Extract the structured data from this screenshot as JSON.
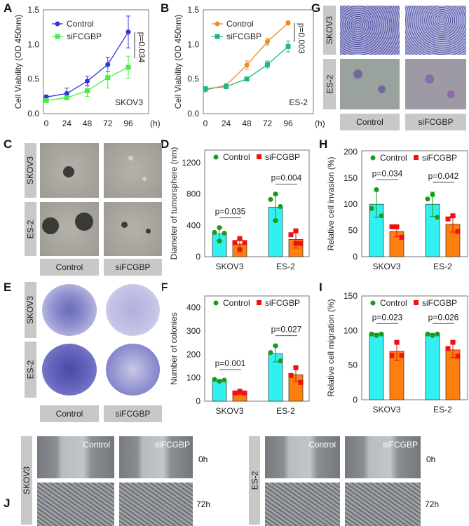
{
  "panels": {
    "A": "A",
    "B": "B",
    "C": "C",
    "D": "D",
    "E": "E",
    "F": "F",
    "G": "G",
    "H": "H",
    "I": "I",
    "J": "J"
  },
  "photo_labels": {
    "skov3": "SKOV3",
    "es2": "ES-2",
    "control": "Control",
    "si": "siFCGBP",
    "t0": "0h",
    "t72": "72h"
  },
  "colors": {
    "control_bar": "#33f0f0",
    "si_bar": "#ff7f0e",
    "control_dot": "#1a9a1a",
    "si_dot": "#ee1111",
    "A_control": "#3333dd",
    "A_si": "#44ee44",
    "B_control": "#f28a1e",
    "B_si": "#1fb884"
  },
  "chart_data": [
    {
      "id": "A",
      "type": "line",
      "ylabel": "Cell Viability (OD 450nm)",
      "xunit": "(h)",
      "x": [
        0,
        24,
        48,
        72,
        96
      ],
      "xticks": [
        "0",
        "24",
        "48",
        "72",
        "96"
      ],
      "ylim": [
        0,
        1.5
      ],
      "yticks": [
        "0.0",
        "0.5",
        "1.0",
        "1.5"
      ],
      "cell_line": "SKOV3",
      "pvalue": "p=0.034",
      "legend": "top-left",
      "series": [
        {
          "name": "Control",
          "values": [
            0.24,
            0.29,
            0.47,
            0.71,
            1.18
          ],
          "err": [
            0.03,
            0.08,
            0.07,
            0.1,
            0.23
          ]
        },
        {
          "name": "siFCGBP",
          "values": [
            0.19,
            0.23,
            0.33,
            0.52,
            0.67
          ],
          "err": [
            0.02,
            0.03,
            0.08,
            0.15,
            0.16
          ]
        }
      ]
    },
    {
      "id": "B",
      "type": "line",
      "ylabel": "Cell Viability (OD 450nm)",
      "xunit": "(h)",
      "x": [
        0,
        24,
        48,
        72,
        96
      ],
      "xticks": [
        "0",
        "24",
        "48",
        "72",
        "96"
      ],
      "ylim": [
        0,
        1.5
      ],
      "yticks": [
        "0.0",
        "0.5",
        "1.0",
        "1.5"
      ],
      "cell_line": "ES-2",
      "pvalue": "p=0.003",
      "legend": "top-left",
      "series": [
        {
          "name": "Control",
          "values": [
            0.34,
            0.41,
            0.7,
            1.04,
            1.31
          ],
          "err": [
            0.02,
            0.02,
            0.06,
            0.05,
            0.03
          ]
        },
        {
          "name": "siFCGBP",
          "values": [
            0.36,
            0.39,
            0.5,
            0.71,
            0.97
          ],
          "err": [
            0.02,
            0.02,
            0.02,
            0.05,
            0.08
          ]
        }
      ]
    },
    {
      "id": "D",
      "type": "bar",
      "ylabel": "Diameter of tumorsphere (nm)",
      "ylim": [
        0,
        1360
      ],
      "yticks": [
        "0",
        "400",
        "800",
        "1200"
      ],
      "categories": [
        "SKOV3",
        "ES-2"
      ],
      "legend": "top",
      "series": [
        {
          "name": "Control",
          "values": [
            290,
            630
          ],
          "err": [
            80,
            160
          ],
          "points": [
            [
              370,
              310,
              300,
              200
            ],
            [
              800,
              730,
              640,
              460
            ]
          ]
        },
        {
          "name": "siFCGBP",
          "values": [
            160,
            220
          ],
          "err": [
            60,
            110
          ],
          "points": [
            [
              230,
              180,
              180,
              90
            ],
            [
              330,
              280,
              170,
              170
            ]
          ]
        }
      ],
      "pvalues": [
        "p=0.035",
        "p=0.004"
      ]
    },
    {
      "id": "H",
      "type": "bar",
      "ylabel": "Relative cell invasion (%)",
      "ylim": [
        0,
        202
      ],
      "yticks": [
        "0",
        "50",
        "100",
        "150",
        "200"
      ],
      "categories": [
        "SKOV3",
        "ES-2"
      ],
      "legend": "top",
      "series": [
        {
          "name": "Control",
          "values": [
            100,
            100
          ],
          "err": [
            25,
            23
          ],
          "points": [
            [
              128,
              92,
              78
            ],
            [
              118,
              110,
              75
            ]
          ]
        },
        {
          "name": "siFCGBP",
          "values": [
            48,
            62
          ],
          "err": [
            10,
            15
          ],
          "points": [
            [
              57,
              57,
              37
            ],
            [
              78,
              72,
              48
            ]
          ]
        }
      ],
      "pvalues": [
        "p=0.034",
        "p=0.042"
      ]
    },
    {
      "id": "F",
      "type": "bar",
      "ylabel": "Number of colonies",
      "ylim": [
        0,
        450
      ],
      "yticks": [
        "0",
        "100",
        "200",
        "300",
        "400"
      ],
      "categories": [
        "SKOV3",
        "ES-2"
      ],
      "legend": "top",
      "series": [
        {
          "name": "Control",
          "values": [
            87,
            203
          ],
          "err": [
            5,
            35
          ],
          "points": [
            [
              85,
              93,
              90
            ],
            [
              237,
              208,
              172
            ]
          ]
        },
        {
          "name": "siFCGBP",
          "values": [
            35,
            113
          ],
          "err": [
            6,
            30
          ],
          "points": [
            [
              42,
              35,
              35
            ],
            [
              143,
              110,
              80
            ]
          ]
        }
      ],
      "pvalues": [
        "p=0.001",
        "p=0.027"
      ]
    },
    {
      "id": "I",
      "type": "bar",
      "ylabel": "Relative cell migration (%)",
      "ylim": [
        0,
        150
      ],
      "yticks": [
        "0",
        "50",
        "100",
        "150"
      ],
      "categories": [
        "SKOV3",
        "ES-2"
      ],
      "legend": "top",
      "series": [
        {
          "name": "Control",
          "values": [
            94,
            94
          ],
          "err": [
            2,
            2
          ],
          "points": [
            [
              93,
              95,
              95
            ],
            [
              93,
              95,
              95
            ]
          ]
        },
        {
          "name": "siFCGBP",
          "values": [
            70,
            72
          ],
          "err": [
            13,
            11
          ],
          "points": [
            [
              83,
              64,
              64
            ],
            [
              83,
              74,
              63
            ]
          ]
        }
      ],
      "pvalues": [
        "p=0.023",
        "p=0.026"
      ]
    }
  ]
}
